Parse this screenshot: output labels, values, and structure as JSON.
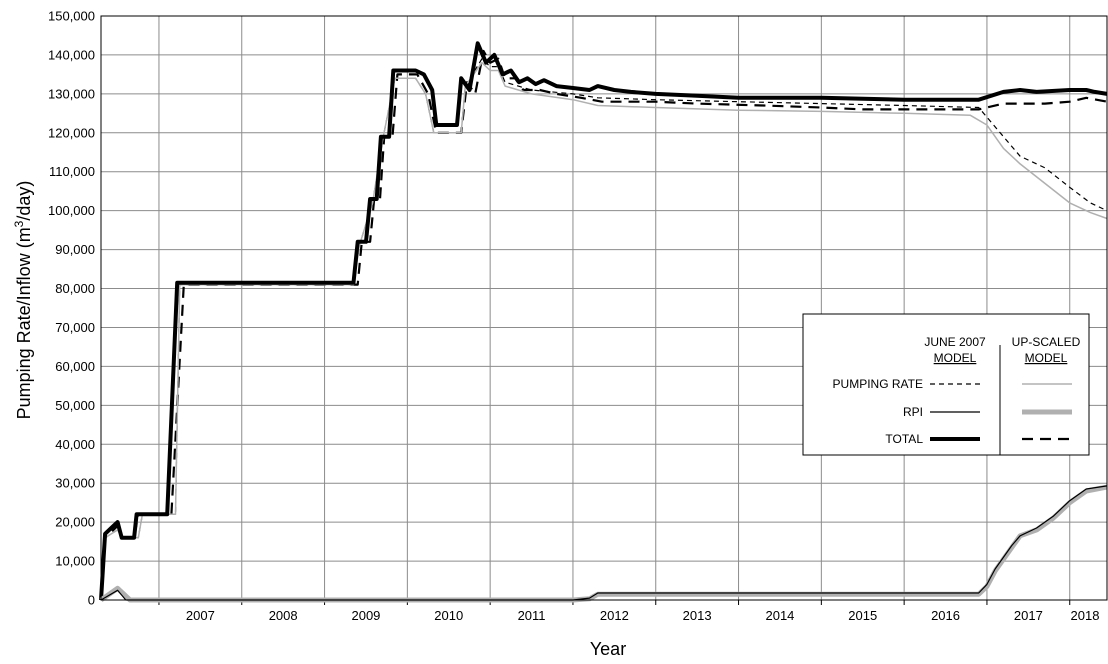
{
  "chart_data": {
    "type": "line",
    "title": "",
    "ylabel_main": "Pumping Rate/Inflow (m",
    "ylabel_sup": "3",
    "ylabel_end": "/day)",
    "xlabel": "Year",
    "xlim": [
      2006.3,
      2018.45
    ],
    "ylim": [
      0,
      150000
    ],
    "y_ticks": [
      "0",
      "10,000",
      "20,000",
      "30,000",
      "40,000",
      "50,000",
      "60,000",
      "70,000",
      "80,000",
      "90,000",
      "100,000",
      "110,000",
      "120,000",
      "130,000",
      "140,000",
      "150,000"
    ],
    "x_tick_labels": [
      "2007",
      "2008",
      "2009",
      "2010",
      "2011",
      "2012",
      "2013",
      "2014",
      "2015",
      "2016",
      "2017",
      "2018"
    ],
    "grid": true,
    "legend": {
      "placement": "right",
      "col1_line1": "JUNE 2007",
      "col1_line2": "MODEL",
      "col2_line1": "UP-SCALED",
      "col2_line2": "MODEL",
      "rows": [
        "PUMPING RATE",
        "RPI",
        "TOTAL"
      ]
    },
    "series": [
      {
        "name": "UP-SCALED TOTAL",
        "style": "up_total",
        "points": [
          [
            2006.3,
            0
          ],
          [
            2006.35,
            16000
          ],
          [
            2006.5,
            19000
          ],
          [
            2006.55,
            16000
          ],
          [
            2006.7,
            16000
          ],
          [
            2006.75,
            22000
          ],
          [
            2007.15,
            22000
          ],
          [
            2007.3,
            81000
          ],
          [
            2009.4,
            81000
          ],
          [
            2009.45,
            92000
          ],
          [
            2009.55,
            92000
          ],
          [
            2009.6,
            103000
          ],
          [
            2009.67,
            103000
          ],
          [
            2009.72,
            119000
          ],
          [
            2009.82,
            119000
          ],
          [
            2009.88,
            135000
          ],
          [
            2010.12,
            135000
          ],
          [
            2010.25,
            130000
          ],
          [
            2010.35,
            120000
          ],
          [
            2010.65,
            120000
          ],
          [
            2010.72,
            133000
          ],
          [
            2010.82,
            130000
          ],
          [
            2010.92,
            141000
          ],
          [
            2011.0,
            138000
          ],
          [
            2011.1,
            139000
          ],
          [
            2011.18,
            134000
          ],
          [
            2011.3,
            134000
          ],
          [
            2011.4,
            131000
          ],
          [
            2011.6,
            131000
          ],
          [
            2011.8,
            130000
          ],
          [
            2012.1,
            129000
          ],
          [
            2012.35,
            128000
          ],
          [
            2013.0,
            128000
          ],
          [
            2013.5,
            127500
          ],
          [
            2014.3,
            127000
          ],
          [
            2015.0,
            126500
          ],
          [
            2015.5,
            126000
          ],
          [
            2016.9,
            126000
          ],
          [
            2017.2,
            127500
          ],
          [
            2017.7,
            127500
          ],
          [
            2018.0,
            128000
          ],
          [
            2018.2,
            129000
          ],
          [
            2018.45,
            128000
          ]
        ]
      },
      {
        "name": "JUNE 2007 PUMPING RATE",
        "style": "june_pump",
        "points": [
          [
            2006.3,
            0
          ],
          [
            2006.35,
            16000
          ],
          [
            2006.5,
            18000
          ],
          [
            2006.55,
            16000
          ],
          [
            2006.75,
            16000
          ],
          [
            2006.8,
            22000
          ],
          [
            2007.2,
            22000
          ],
          [
            2007.25,
            81000
          ],
          [
            2009.35,
            81000
          ],
          [
            2009.42,
            91000
          ],
          [
            2009.58,
            102000
          ],
          [
            2009.7,
            118000
          ],
          [
            2009.85,
            134000
          ],
          [
            2010.1,
            134000
          ],
          [
            2010.22,
            130000
          ],
          [
            2010.32,
            120000
          ],
          [
            2010.65,
            120000
          ],
          [
            2010.7,
            132000
          ],
          [
            2010.9,
            139000
          ],
          [
            2011.0,
            137000
          ],
          [
            2011.1,
            137000
          ],
          [
            2011.18,
            133000
          ],
          [
            2011.5,
            131000
          ],
          [
            2012.0,
            130000
          ],
          [
            2012.3,
            129000
          ],
          [
            2013.0,
            128500
          ],
          [
            2014.0,
            128000
          ],
          [
            2015.0,
            127500
          ],
          [
            2016.0,
            127000
          ],
          [
            2016.9,
            126500
          ],
          [
            2017.2,
            119000
          ],
          [
            2017.4,
            114000
          ],
          [
            2017.7,
            111000
          ],
          [
            2018.0,
            106000
          ],
          [
            2018.25,
            102000
          ],
          [
            2018.45,
            100000
          ]
        ]
      },
      {
        "name": "UP-SCALED PUMPING RATE",
        "style": "up_pump",
        "points": [
          [
            2006.3,
            0
          ],
          [
            2006.35,
            16000
          ],
          [
            2006.5,
            18000
          ],
          [
            2006.55,
            16000
          ],
          [
            2006.75,
            16000
          ],
          [
            2006.8,
            22000
          ],
          [
            2007.2,
            22000
          ],
          [
            2007.25,
            81000
          ],
          [
            2009.35,
            81000
          ],
          [
            2009.42,
            91000
          ],
          [
            2009.58,
            102000
          ],
          [
            2009.7,
            118000
          ],
          [
            2009.85,
            134000
          ],
          [
            2010.1,
            134000
          ],
          [
            2010.22,
            130000
          ],
          [
            2010.32,
            120000
          ],
          [
            2010.65,
            120000
          ],
          [
            2010.7,
            132000
          ],
          [
            2010.9,
            138000
          ],
          [
            2011.0,
            136000
          ],
          [
            2011.1,
            136000
          ],
          [
            2011.18,
            132000
          ],
          [
            2011.5,
            130000
          ],
          [
            2012.0,
            128500
          ],
          [
            2012.3,
            127000
          ],
          [
            2013.0,
            126500
          ],
          [
            2014.0,
            125800
          ],
          [
            2015.0,
            125500
          ],
          [
            2016.0,
            125000
          ],
          [
            2016.8,
            124500
          ],
          [
            2017.0,
            122000
          ],
          [
            2017.2,
            116000
          ],
          [
            2017.4,
            112000
          ],
          [
            2017.7,
            107000
          ],
          [
            2018.0,
            102000
          ],
          [
            2018.25,
            99500
          ],
          [
            2018.45,
            98000
          ]
        ]
      },
      {
        "name": "JUNE 2007 TOTAL",
        "style": "june_total",
        "points": [
          [
            2006.3,
            0
          ],
          [
            2006.35,
            17000
          ],
          [
            2006.45,
            19000
          ],
          [
            2006.5,
            20000
          ],
          [
            2006.55,
            16000
          ],
          [
            2006.7,
            16000
          ],
          [
            2006.73,
            22000
          ],
          [
            2007.1,
            22000
          ],
          [
            2007.22,
            81500
          ],
          [
            2009.35,
            81500
          ],
          [
            2009.4,
            92000
          ],
          [
            2009.5,
            92000
          ],
          [
            2009.55,
            103000
          ],
          [
            2009.63,
            103000
          ],
          [
            2009.68,
            119000
          ],
          [
            2009.78,
            119000
          ],
          [
            2009.83,
            136000
          ],
          [
            2010.1,
            136000
          ],
          [
            2010.2,
            135000
          ],
          [
            2010.3,
            131000
          ],
          [
            2010.35,
            122000
          ],
          [
            2010.6,
            122000
          ],
          [
            2010.65,
            134000
          ],
          [
            2010.75,
            131000
          ],
          [
            2010.85,
            143000
          ],
          [
            2010.95,
            138000
          ],
          [
            2011.05,
            140000
          ],
          [
            2011.15,
            135000
          ],
          [
            2011.25,
            136000
          ],
          [
            2011.35,
            133000
          ],
          [
            2011.45,
            134000
          ],
          [
            2011.55,
            132500
          ],
          [
            2011.65,
            133500
          ],
          [
            2011.8,
            132000
          ],
          [
            2012.0,
            131500
          ],
          [
            2012.2,
            131000
          ],
          [
            2012.3,
            132000
          ],
          [
            2012.5,
            131000
          ],
          [
            2012.7,
            130500
          ],
          [
            2013.0,
            130000
          ],
          [
            2013.5,
            129500
          ],
          [
            2014.0,
            129000
          ],
          [
            2015.0,
            129000
          ],
          [
            2016.0,
            128500
          ],
          [
            2016.9,
            128500
          ],
          [
            2017.2,
            130500
          ],
          [
            2017.4,
            131000
          ],
          [
            2017.6,
            130500
          ],
          [
            2018.0,
            131000
          ],
          [
            2018.2,
            131000
          ],
          [
            2018.3,
            130500
          ],
          [
            2018.45,
            130000
          ]
        ]
      },
      {
        "name": "UP-SCALED RPI",
        "style": "up_rpi",
        "points": [
          [
            2006.3,
            0
          ],
          [
            2006.5,
            3000
          ],
          [
            2006.65,
            0
          ],
          [
            2007.0,
            0
          ],
          [
            2012.0,
            0
          ],
          [
            2012.2,
            300
          ],
          [
            2012.3,
            1500
          ],
          [
            2013.0,
            1500
          ],
          [
            2016.9,
            1500
          ],
          [
            2017.0,
            3500
          ],
          [
            2017.1,
            7500
          ],
          [
            2017.3,
            13500
          ],
          [
            2017.4,
            16500
          ],
          [
            2017.6,
            18000
          ],
          [
            2017.8,
            21000
          ],
          [
            2018.0,
            25000
          ],
          [
            2018.2,
            28000
          ],
          [
            2018.45,
            29000
          ]
        ]
      },
      {
        "name": "JUNE 2007 RPI",
        "style": "june_rpi",
        "points": [
          [
            2006.3,
            0
          ],
          [
            2006.5,
            2500
          ],
          [
            2006.6,
            0
          ],
          [
            2007.0,
            0
          ],
          [
            2012.0,
            0
          ],
          [
            2012.2,
            500
          ],
          [
            2012.3,
            1800
          ],
          [
            2013.0,
            1800
          ],
          [
            2016.9,
            1800
          ],
          [
            2017.0,
            4000
          ],
          [
            2017.1,
            8000
          ],
          [
            2017.3,
            14000
          ],
          [
            2017.4,
            16500
          ],
          [
            2017.6,
            18500
          ],
          [
            2017.8,
            21500
          ],
          [
            2018.0,
            25500
          ],
          [
            2018.2,
            28500
          ],
          [
            2018.45,
            29300
          ]
        ]
      }
    ]
  }
}
